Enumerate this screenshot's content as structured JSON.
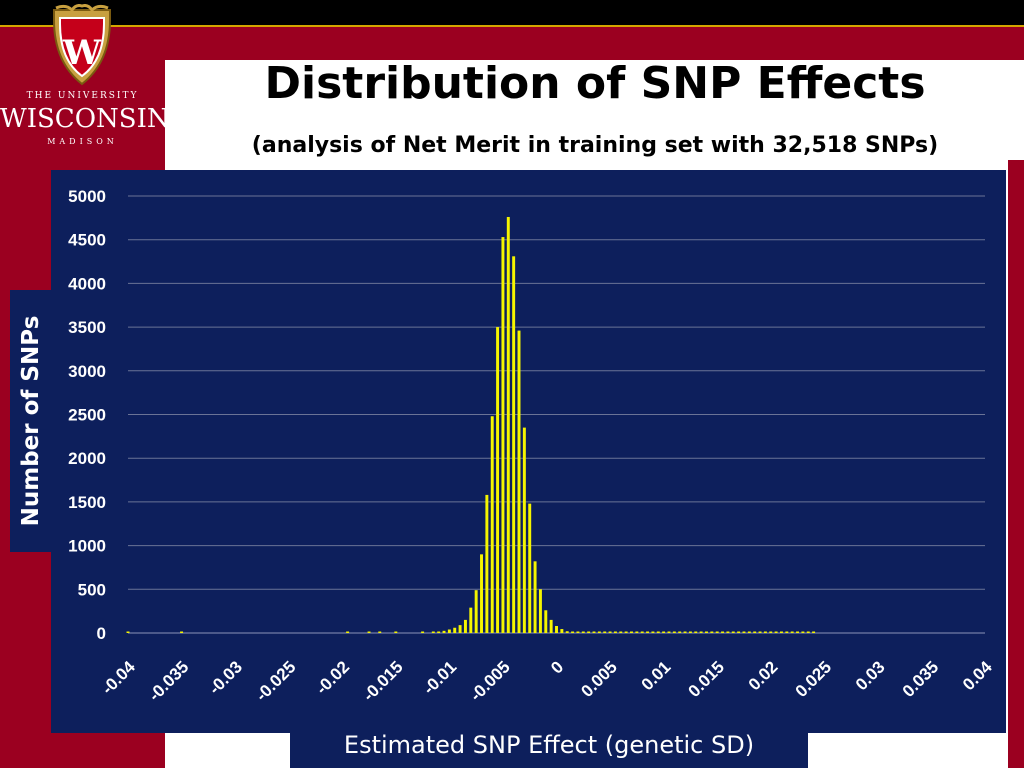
{
  "slide": {
    "title": "Distribution of SNP Effects",
    "subtitle": "(analysis of Net Merit in training set with 32,518 SNPs)",
    "university": {
      "line1": "THE UNIVERSITY",
      "line2": "WISCONSIN",
      "line3": "MADISON",
      "crest_letter": "W"
    },
    "colors": {
      "brand_red": "#9b0020",
      "chart_bg": "#0d1f5c",
      "bar": "#f5f500",
      "gold": "#d4a500"
    }
  },
  "chart_data": {
    "type": "bar",
    "title": "",
    "xlabel": "Estimated SNP Effect (genetic SD)",
    "ylabel": "Number of SNPs",
    "ylim": [
      0,
      5000
    ],
    "xlim": [
      -0.04,
      0.04
    ],
    "grid": true,
    "y_ticks": [
      0,
      500,
      1000,
      1500,
      2000,
      2500,
      3000,
      3500,
      4000,
      4500,
      5000
    ],
    "x_ticks": [
      "-0.04",
      "-0.035",
      "-0.03",
      "-0.025",
      "-0.02",
      "-0.015",
      "-0.01",
      "-0.005",
      "0",
      "0.005",
      "0.01",
      "0.015",
      "0.02",
      "0.025",
      "0.03",
      "0.035",
      "0.04"
    ],
    "x": [
      -0.04,
      -0.035,
      -0.0195,
      -0.0175,
      -0.0165,
      -0.015,
      -0.0125,
      -0.0115,
      -0.011,
      -0.0105,
      -0.01,
      -0.0095,
      -0.009,
      -0.0085,
      -0.008,
      -0.0075,
      -0.007,
      -0.0065,
      -0.006,
      -0.0055,
      -0.005,
      -0.0045,
      -0.004,
      -0.0035,
      -0.003,
      -0.0025,
      -0.002,
      -0.0015,
      -0.001,
      -0.0005,
      0,
      0.0005,
      0.001,
      0.0015,
      0.002,
      0.0025,
      0.003,
      0.0035,
      0.004,
      0.0045,
      0.005,
      0.0055,
      0.006,
      0.0065,
      0.007,
      0.0075,
      0.008,
      0.0085,
      0.009,
      0.0095,
      0.01,
      0.0105,
      0.011,
      0.0115,
      0.012,
      0.0125,
      0.013,
      0.0135,
      0.014,
      0.0145,
      0.015,
      0.0155,
      0.016,
      0.0165,
      0.017,
      0.0175,
      0.018,
      0.0185,
      0.019,
      0.0195,
      0.02,
      0.0205,
      0.021,
      0.0215,
      0.022,
      0.0225,
      0.023,
      0.0235,
      0.024
    ],
    "values": [
      2,
      2,
      2,
      2,
      2,
      2,
      5,
      10,
      15,
      25,
      40,
      60,
      90,
      150,
      290,
      490,
      900,
      1580,
      2480,
      3500,
      4530,
      4760,
      4310,
      3460,
      2350,
      1480,
      820,
      500,
      260,
      150,
      80,
      45,
      20,
      10,
      5,
      5,
      3,
      2,
      2,
      2,
      2,
      2,
      2,
      2,
      2,
      2,
      2,
      2,
      2,
      2,
      2,
      2,
      2,
      2,
      2,
      2,
      2,
      2,
      2,
      2,
      2,
      2,
      2,
      2,
      2,
      2,
      2,
      2,
      2,
      2,
      2,
      2,
      2,
      2,
      2,
      2,
      2,
      2,
      2
    ]
  }
}
